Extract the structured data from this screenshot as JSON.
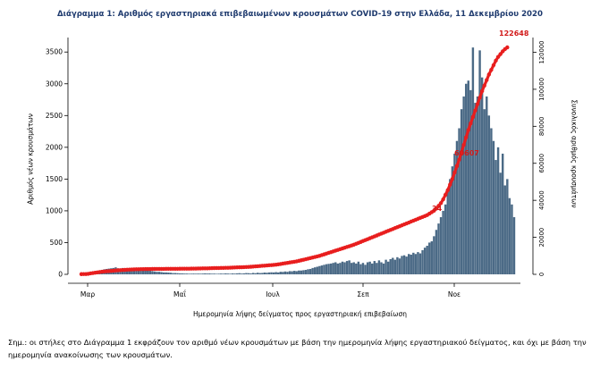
{
  "chart_data": {
    "type": "bar",
    "title": "Διάγραμμα 1: Αριθμός εργαστηριακά επιβεβαιωμένων κρουσμάτων COVID-19 στην Ελλάδα, 11 Δεκεμβρίου 2020",
    "xlabel": "Ημερομηνία λήψης δείγματος προς εργαστηριακή επιβεβαίωση",
    "ylabel_left": "Αριθμός νέων κρουσμάτων",
    "ylabel_right": "Συνολικός αριθμός κρουσμάτων",
    "x_ticks": [
      "Μαρ",
      "Μαΐ",
      "Ιουλ",
      "Σεπ",
      "Νοε"
    ],
    "y_left_ticks": [
      0,
      500,
      1000,
      1500,
      2000,
      2500,
      3000,
      3500
    ],
    "y_left_lim": [
      0,
      3700
    ],
    "y_right_ticks": [
      0,
      20000,
      40000,
      60000,
      80000,
      100000,
      120000
    ],
    "y_right_lim": [
      0,
      127000
    ],
    "grid": false,
    "series": [
      {
        "type": "bar",
        "color": "#4b6a86",
        "values": [
          2,
          5,
          8,
          12,
          20,
          30,
          45,
          55,
          60,
          70,
          80,
          85,
          90,
          95,
          100,
          110,
          95,
          90,
          100,
          85,
          95,
          90,
          80,
          85,
          90,
          75,
          80,
          70,
          65,
          60,
          55,
          50,
          45,
          40,
          40,
          35,
          30,
          30,
          28,
          25,
          20,
          20,
          18,
          15,
          15,
          12,
          12,
          10,
          10,
          12,
          10,
          12,
          10,
          12,
          15,
          12,
          14,
          10,
          12,
          8,
          10,
          12,
          10,
          15,
          12,
          10,
          14,
          12,
          15,
          18,
          12,
          15,
          20,
          18,
          15,
          22,
          18,
          25,
          20,
          22,
          28,
          25,
          30,
          32,
          30,
          35,
          30,
          40,
          38,
          45,
          40,
          50,
          48,
          55,
          50,
          60,
          60,
          65,
          70,
          80,
          85,
          100,
          110,
          120,
          130,
          140,
          150,
          160,
          165,
          170,
          180,
          190,
          170,
          180,
          200,
          190,
          210,
          220,
          180,
          190,
          170,
          200,
          160,
          180,
          150,
          190,
          200,
          170,
          210,
          180,
          220,
          190,
          170,
          230,
          200,
          240,
          260,
          230,
          270,
          250,
          290,
          300,
          280,
          320,
          310,
          340,
          320,
          350,
          330,
          380,
          420,
          450,
          500,
          520,
          600,
          700,
          800,
          900,
          1000,
          1100,
          1300,
          1500,
          1700,
          1900,
          2100,
          2300,
          2600,
          2800,
          3000,
          3050,
          2900,
          3571,
          2700,
          2800,
          3526,
          3100,
          2600,
          2800,
          2500,
          2300,
          2100,
          1800,
          2000,
          1600,
          1900,
          1400,
          1500,
          1200,
          1100,
          900
        ]
      },
      {
        "type": "line",
        "color": "#e81e1e",
        "name": "cumulative",
        "values": [
          117,
          142,
          175,
          290,
          495,
          695,
          892,
          1061,
          1212,
          1415,
          1544,
          1673,
          1735,
          1832,
          1955,
          2081,
          2170,
          2235,
          2328,
          2411,
          2517,
          2566,
          2620,
          2680,
          2732,
          2770,
          2810,
          2830,
          2850,
          2870,
          2890,
          2900,
          2910,
          2920,
          2930,
          2940,
          2950,
          2960,
          2970,
          2980,
          2990,
          3000,
          3010,
          3020,
          3030,
          3040,
          3050,
          3060,
          3080,
          3100,
          3120,
          3150,
          3180,
          3210,
          3230,
          3250,
          3300,
          3350,
          3380,
          3400,
          3420,
          3450,
          3480,
          3520,
          3550,
          3600,
          3650,
          3700,
          3750,
          3800,
          3850,
          3900,
          3950,
          4000,
          4100,
          4200,
          4300,
          4400,
          4500,
          4600,
          4700,
          4800,
          4900,
          5000,
          5100,
          5200,
          5400,
          5600,
          5800,
          6000,
          6200,
          6400,
          6600,
          6800,
          7000,
          7300,
          7600,
          7900,
          8200,
          8500,
          8800,
          9100,
          9400,
          9700,
          10000,
          10400,
          10800,
          11200,
          11600,
          12000,
          12400,
          12800,
          13200,
          13600,
          14000,
          14400,
          14800,
          15200,
          15600,
          16000,
          16500,
          17000,
          17500,
          18000,
          18500,
          19000,
          19500,
          20000,
          20500,
          21000,
          21500,
          22000,
          22500,
          23000,
          23500,
          24000,
          24500,
          25000,
          25500,
          26000,
          26500,
          27000,
          27500,
          28000,
          28500,
          29000,
          29500,
          30000,
          30500,
          31000,
          31500,
          32000,
          32800,
          33600,
          34400,
          35500,
          37000,
          38500,
          40500,
          43000,
          45500,
          48500,
          51500,
          55000,
          58500,
          62000,
          66000,
          70000,
          74000,
          78000,
          81500,
          85000,
          88500,
          92000,
          95500,
          99000,
          102000,
          105000,
          108000,
          110500,
          113000,
          115500,
          117500,
          119000,
          120500,
          121700,
          122648
        ]
      }
    ],
    "annotations": [
      "122648",
      "60607",
      "34"
    ]
  }
}
